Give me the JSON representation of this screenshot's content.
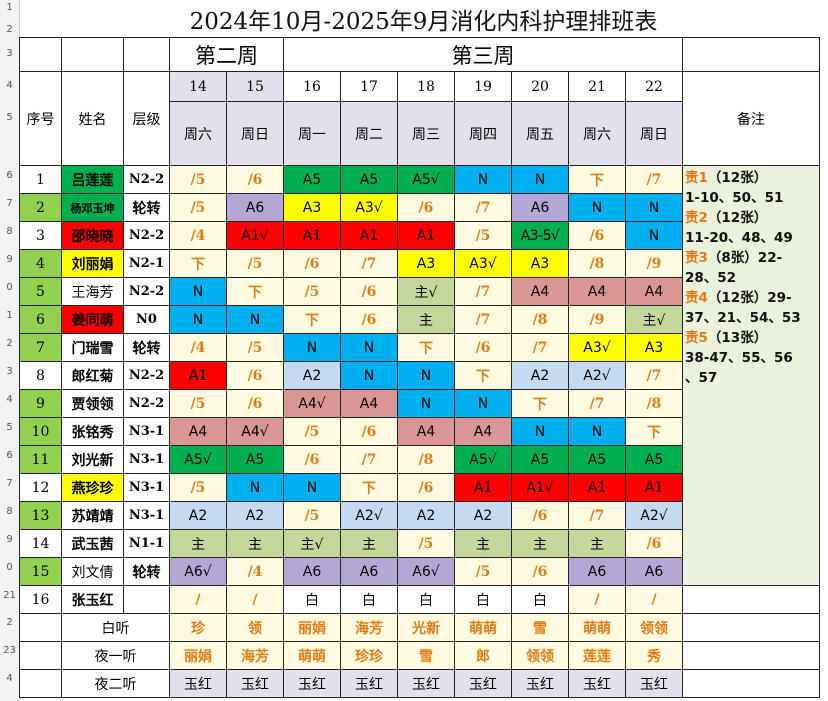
{
  "title": "2024年10月-2025年9月消化内科护理排班表",
  "row_numbers": [
    "1",
    "2",
    "3",
    "4",
    "5",
    "6",
    "7",
    "8",
    "9",
    "0",
    "1",
    "2",
    "3",
    "4",
    "5",
    "6",
    "7",
    "8",
    "9",
    "0",
    "21",
    "2",
    "23",
    "4"
  ],
  "headers": {
    "index": "序号",
    "name": "姓名",
    "level": "层级",
    "notes": "备注",
    "week2": "第二周",
    "week3": "第三周",
    "day_numbers": [
      "14",
      "15",
      "16",
      "17",
      "18",
      "19",
      "20",
      "21",
      "22"
    ],
    "day_names": [
      "周六",
      "周日",
      "周一",
      "周二",
      "周三",
      "周四",
      "周五",
      "周六",
      "周日"
    ]
  },
  "colors": {
    "green": "#00b050",
    "lavender": "#b4a7d6",
    "yellow": "#ffff00",
    "red": "#ff0000",
    "blue": "#00b0f0",
    "olive": "#c4d79b",
    "rose": "#da9694",
    "lightblue": "#c5d9f1",
    "paleyellow": "#fffbe0",
    "namegreen": "#92d050"
  },
  "staff": [
    {
      "idx": "1",
      "name": "吕莲莲",
      "level": "N2-2",
      "name_bg": "green",
      "shifts": [
        [
          "/5",
          "o"
        ],
        [
          "/6",
          "o"
        ],
        [
          "A5",
          "green"
        ],
        [
          "A5",
          "green"
        ],
        [
          "A5√",
          "green"
        ],
        [
          "N",
          "blue"
        ],
        [
          "N",
          "blue"
        ],
        [
          "下",
          "o"
        ],
        [
          "/7",
          "o"
        ]
      ]
    },
    {
      "idx": "2",
      "name": "杨邓玉坤",
      "level": "轮转",
      "name_bg": "green",
      "idx_bg": "green",
      "small": true,
      "shifts": [
        [
          "/5",
          "o"
        ],
        [
          "A6",
          "lavender"
        ],
        [
          "A3",
          "yellow"
        ],
        [
          "A3√",
          "yellow"
        ],
        [
          "/6",
          "o"
        ],
        [
          "/7",
          "o"
        ],
        [
          "A6",
          "lavender"
        ],
        [
          "N",
          "blue"
        ],
        [
          "N",
          "blue"
        ]
      ]
    },
    {
      "idx": "3",
      "name": "邵晓晓",
      "level": "N2-2",
      "name_bg": "red",
      "shifts": [
        [
          "/4",
          "o"
        ],
        [
          "A1√",
          "red"
        ],
        [
          "A1",
          "red"
        ],
        [
          "A1",
          "red"
        ],
        [
          "A1",
          "red"
        ],
        [
          "/5",
          "o"
        ],
        [
          "A3-5√",
          "green"
        ],
        [
          "/6",
          "o"
        ],
        [
          "N",
          "blue"
        ]
      ]
    },
    {
      "idx": "4",
      "name": "刘丽娟",
      "level": "N2-1",
      "name_bg": "yellow",
      "idx_bg": "green",
      "shifts": [
        [
          "下",
          "o"
        ],
        [
          "/5",
          "o"
        ],
        [
          "/6",
          "o"
        ],
        [
          "/7",
          "o"
        ],
        [
          "A3",
          "yellow"
        ],
        [
          "A3√",
          "yellow"
        ],
        [
          "A3",
          "yellow"
        ],
        [
          "/8",
          "o"
        ],
        [
          "/9",
          "o"
        ]
      ]
    },
    {
      "idx": "5",
      "name": "王海芳",
      "level": "N2-2",
      "plain": true,
      "idx_bg": "green",
      "shifts": [
        [
          "N",
          "blue"
        ],
        [
          "下",
          "o"
        ],
        [
          "/5",
          "o"
        ],
        [
          "/6",
          "o"
        ],
        [
          "主√",
          "olive"
        ],
        [
          "/7",
          "o"
        ],
        [
          "A4",
          "rose"
        ],
        [
          "A4",
          "rose"
        ],
        [
          "A4",
          "rose"
        ]
      ]
    },
    {
      "idx": "6",
      "name": "姜同萌",
      "level": "N0",
      "name_bg": "red",
      "idx_bg": "green",
      "shifts": [
        [
          "N",
          "blue"
        ],
        [
          "N",
          "blue"
        ],
        [
          "下",
          "o"
        ],
        [
          "/6",
          "o"
        ],
        [
          "主",
          "olive"
        ],
        [
          "/7",
          "o"
        ],
        [
          "/8",
          "o"
        ],
        [
          "/9",
          "o"
        ],
        [
          "主√",
          "olive"
        ]
      ]
    },
    {
      "idx": "7",
      "name": "门瑞雪",
      "level": "轮转",
      "idx_bg": "green",
      "shifts": [
        [
          "/4",
          "o"
        ],
        [
          "/5",
          "o"
        ],
        [
          "N",
          "blue"
        ],
        [
          "N",
          "blue"
        ],
        [
          "下",
          "o"
        ],
        [
          "/6",
          "o"
        ],
        [
          "/7",
          "o"
        ],
        [
          "A3√",
          "yellow"
        ],
        [
          "A3",
          "yellow"
        ]
      ]
    },
    {
      "idx": "8",
      "name": "郎红菊",
      "level": "N2-2",
      "shifts": [
        [
          "A1",
          "red"
        ],
        [
          "/6",
          "o"
        ],
        [
          "A2",
          "lightblue"
        ],
        [
          "N",
          "blue"
        ],
        [
          "N",
          "blue"
        ],
        [
          "下",
          "o"
        ],
        [
          "A2",
          "lightblue"
        ],
        [
          "A2√",
          "lightblue"
        ],
        [
          "/7",
          "o"
        ]
      ]
    },
    {
      "idx": "9",
      "name": "贾领领",
      "level": "N2-2",
      "idx_bg": "green",
      "shifts": [
        [
          "/5",
          "o"
        ],
        [
          "/6",
          "o"
        ],
        [
          "A4√",
          "rose"
        ],
        [
          "A4",
          "rose"
        ],
        [
          "N",
          "blue"
        ],
        [
          "N",
          "blue"
        ],
        [
          "下",
          "o"
        ],
        [
          "/7",
          "o"
        ],
        [
          "/8",
          "o"
        ]
      ]
    },
    {
      "idx": "10",
      "name": "张铭秀",
      "level": "N3-1",
      "idx_bg": "green",
      "shifts": [
        [
          "A4",
          "rose"
        ],
        [
          "A4√",
          "rose"
        ],
        [
          "/5",
          "o"
        ],
        [
          "/6",
          "o"
        ],
        [
          "A4",
          "rose"
        ],
        [
          "A4",
          "rose"
        ],
        [
          "N",
          "blue"
        ],
        [
          "N",
          "blue"
        ],
        [
          "下",
          "o"
        ]
      ]
    },
    {
      "idx": "11",
      "name": "刘光新",
      "level": "N3-1",
      "idx_bg": "green",
      "shifts": [
        [
          "A5√",
          "green"
        ],
        [
          "A5",
          "green"
        ],
        [
          "/6",
          "o"
        ],
        [
          "/7",
          "o"
        ],
        [
          "/8",
          "o"
        ],
        [
          "A5√",
          "green"
        ],
        [
          "A5",
          "green"
        ],
        [
          "A5",
          "green"
        ],
        [
          "A5",
          "green"
        ]
      ]
    },
    {
      "idx": "12",
      "name": "燕珍珍",
      "level": "N3-1",
      "name_bg": "yellow",
      "shifts": [
        [
          "/5",
          "o"
        ],
        [
          "N",
          "blue"
        ],
        [
          "N",
          "blue"
        ],
        [
          "下",
          "o"
        ],
        [
          "/6",
          "o"
        ],
        [
          "A1",
          "red"
        ],
        [
          "A1√",
          "red"
        ],
        [
          "A1",
          "red"
        ],
        [
          "A1",
          "red"
        ]
      ]
    },
    {
      "idx": "13",
      "name": "苏靖靖",
      "level": "N3-1",
      "idx_bg": "green",
      "shifts": [
        [
          "A2",
          "lightblue"
        ],
        [
          "A2",
          "lightblue"
        ],
        [
          "/5",
          "o"
        ],
        [
          "A2√",
          "lightblue"
        ],
        [
          "A2",
          "lightblue"
        ],
        [
          "A2",
          "lightblue"
        ],
        [
          "/6",
          "o"
        ],
        [
          "/7",
          "o"
        ],
        [
          "A2√",
          "lightblue"
        ]
      ]
    },
    {
      "idx": "14",
      "name": "武玉茜",
      "level": "N1-1",
      "shifts": [
        [
          "主",
          "olive"
        ],
        [
          "主",
          "olive"
        ],
        [
          "主√",
          "olive"
        ],
        [
          "主",
          "olive"
        ],
        [
          "/5",
          "o"
        ],
        [
          "主",
          "olive"
        ],
        [
          "主",
          "olive"
        ],
        [
          "主",
          "olive"
        ],
        [
          "/6",
          "o"
        ]
      ]
    },
    {
      "idx": "15",
      "name": "刘文倩",
      "level": "轮转",
      "plain": true,
      "idx_bg": "green",
      "shifts": [
        [
          "A6√",
          "lavender"
        ],
        [
          "/4",
          "o"
        ],
        [
          "A6",
          "lavender"
        ],
        [
          "A6",
          "lavender"
        ],
        [
          "A6√",
          "lavender"
        ],
        [
          "/5",
          "o"
        ],
        [
          "/6",
          "o"
        ],
        [
          "A6",
          "lavender"
        ],
        [
          "A6",
          "lavender"
        ]
      ]
    },
    {
      "idx": "16",
      "name": "张玉红",
      "level": "",
      "shifts": [
        [
          "/",
          "o"
        ],
        [
          "/",
          "o"
        ],
        [
          "白",
          "w"
        ],
        [
          "白",
          "w"
        ],
        [
          "白",
          "w"
        ],
        [
          "白",
          "w"
        ],
        [
          "白",
          "w"
        ],
        [
          "/",
          "o"
        ],
        [
          "/",
          "o"
        ]
      ]
    }
  ],
  "footer": [
    {
      "label": "白听",
      "values": [
        "珍",
        "领",
        "丽娟",
        "海芳",
        "光新",
        "萌萌",
        "雪",
        "萌萌",
        "领领"
      ],
      "style": "orange"
    },
    {
      "label": "夜一听",
      "values": [
        "丽娟",
        "海芳",
        "萌萌",
        "珍珍",
        "雪",
        "郎",
        "领领",
        "莲莲",
        "秀"
      ],
      "style": "orange"
    },
    {
      "label": "夜二听",
      "values": [
        "玉红",
        "玉红",
        "玉红",
        "玉红",
        "玉红",
        "玉红",
        "玉红",
        "玉红",
        "玉红"
      ],
      "style": "plain"
    }
  ],
  "notes": [
    {
      "tag": "责1",
      "text": "（12张）"
    },
    {
      "tag": "",
      "text": "1-10、50、51"
    },
    {
      "tag": "责2",
      "text": "（12张）"
    },
    {
      "tag": "",
      "text": "11-20、48、49"
    },
    {
      "tag": "责3",
      "text": "（8张）22-"
    },
    {
      "tag": "",
      "text": "28、52"
    },
    {
      "tag": "责4",
      "text": "（12张）29-"
    },
    {
      "tag": "",
      "text": "37、21、54、53"
    },
    {
      "tag": "责5",
      "text": "（13张）"
    },
    {
      "tag": "",
      "text": "38-47、55、56"
    },
    {
      "tag": "",
      "text": "、57"
    }
  ]
}
